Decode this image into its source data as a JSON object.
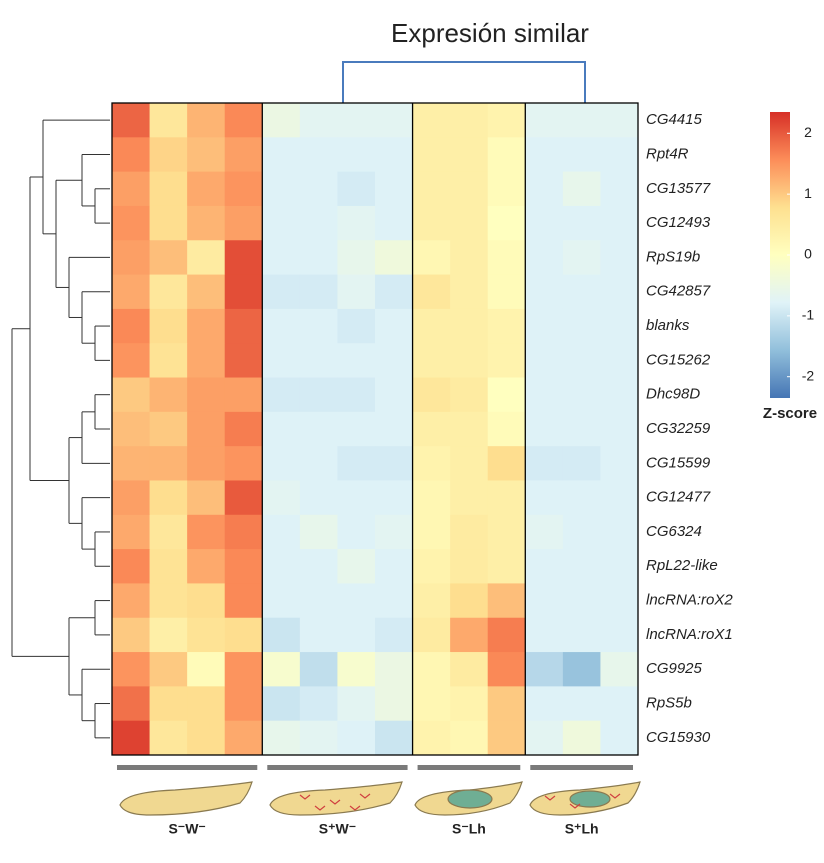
{
  "chart_data": {
    "type": "heatmap",
    "annotation": "Expresión similar",
    "categories": [
      "CG4415",
      "Rpt4R",
      "CG13577",
      "CG12493",
      "RpS19b",
      "CG42857",
      "blanks",
      "CG15262",
      "Dhc98D",
      "CG32259",
      "CG15599",
      "CG12477",
      "CG6324",
      "RpL22-like",
      "lncRNA:roX2",
      "lncRNA:roX1",
      "CG9925",
      "RpS5b",
      "CG15930"
    ],
    "series": [
      {
        "name": "S⁻W⁻",
        "values": [
          [
            1.9,
            0.6,
            1.2,
            1.6
          ],
          [
            1.6,
            0.9,
            1.1,
            1.4
          ],
          [
            1.4,
            0.8,
            1.3,
            1.5
          ],
          [
            1.5,
            0.8,
            1.2,
            1.4
          ],
          [
            1.4,
            1.1,
            0.5,
            2.1
          ],
          [
            1.3,
            0.6,
            1.1,
            2.1
          ],
          [
            1.6,
            0.8,
            1.3,
            1.9
          ],
          [
            1.5,
            0.7,
            1.3,
            1.9
          ],
          [
            1.0,
            1.2,
            1.4,
            1.4
          ],
          [
            1.1,
            1.0,
            1.4,
            1.7
          ],
          [
            1.2,
            1.2,
            1.4,
            1.5
          ],
          [
            1.4,
            0.8,
            1.1,
            2.0
          ],
          [
            1.3,
            0.6,
            1.5,
            1.7
          ],
          [
            1.6,
            0.7,
            1.3,
            1.6
          ],
          [
            1.3,
            0.7,
            0.8,
            1.6
          ],
          [
            1.0,
            0.4,
            0.7,
            0.8
          ],
          [
            1.5,
            1.0,
            0.1,
            1.5
          ],
          [
            1.8,
            0.8,
            0.8,
            1.5
          ],
          [
            2.2,
            0.6,
            0.8,
            1.3
          ]
        ]
      },
      {
        "name": "S⁺W⁻",
        "values": [
          [
            -0.5,
            -0.7,
            -0.7,
            -0.7
          ],
          [
            -0.8,
            -0.8,
            -0.8,
            -0.8
          ],
          [
            -0.8,
            -0.8,
            -0.9,
            -0.8
          ],
          [
            -0.8,
            -0.8,
            -0.7,
            -0.8
          ],
          [
            -0.8,
            -0.8,
            -0.6,
            -0.4
          ],
          [
            -0.9,
            -0.9,
            -0.7,
            -0.9
          ],
          [
            -0.8,
            -0.8,
            -0.9,
            -0.8
          ],
          [
            -0.8,
            -0.8,
            -0.8,
            -0.8
          ],
          [
            -0.9,
            -0.9,
            -0.9,
            -0.8
          ],
          [
            -0.8,
            -0.8,
            -0.8,
            -0.8
          ],
          [
            -0.8,
            -0.8,
            -0.9,
            -0.9
          ],
          [
            -0.7,
            -0.8,
            -0.8,
            -0.8
          ],
          [
            -0.8,
            -0.6,
            -0.8,
            -0.7
          ],
          [
            -0.8,
            -0.8,
            -0.6,
            -0.8
          ],
          [
            -0.8,
            -0.8,
            -0.8,
            -0.8
          ],
          [
            -1.0,
            -0.8,
            -0.8,
            -0.9
          ],
          [
            -0.2,
            -1.1,
            -0.2,
            -0.5
          ],
          [
            -1.0,
            -0.9,
            -0.7,
            -0.5
          ],
          [
            -0.6,
            -0.7,
            -0.8,
            -1.0
          ]
        ]
      },
      {
        "name": "S⁻Lh",
        "values": [
          [
            0.4,
            0.4,
            0.3
          ],
          [
            0.4,
            0.4,
            0.1
          ],
          [
            0.4,
            0.4,
            0.1
          ],
          [
            0.4,
            0.4,
            0.0
          ],
          [
            0.2,
            0.4,
            0.1
          ],
          [
            0.6,
            0.4,
            0.1
          ],
          [
            0.4,
            0.4,
            0.3
          ],
          [
            0.4,
            0.4,
            0.3
          ],
          [
            0.6,
            0.5,
            0.0
          ],
          [
            0.4,
            0.4,
            0.1
          ],
          [
            0.3,
            0.4,
            0.8
          ],
          [
            0.2,
            0.4,
            0.4
          ],
          [
            0.2,
            0.5,
            0.4
          ],
          [
            0.3,
            0.5,
            0.4
          ],
          [
            0.4,
            0.8,
            1.1
          ],
          [
            0.5,
            1.3,
            1.7
          ],
          [
            0.2,
            0.5,
            1.6
          ],
          [
            0.2,
            0.3,
            1.0
          ],
          [
            0.3,
            0.2,
            1.0
          ]
        ]
      },
      {
        "name": "S⁺Lh",
        "values": [
          [
            -0.7,
            -0.7,
            -0.7
          ],
          [
            -0.8,
            -0.8,
            -0.8
          ],
          [
            -0.8,
            -0.6,
            -0.8
          ],
          [
            -0.8,
            -0.8,
            -0.8
          ],
          [
            -0.8,
            -0.7,
            -0.8
          ],
          [
            -0.8,
            -0.8,
            -0.8
          ],
          [
            -0.8,
            -0.8,
            -0.8
          ],
          [
            -0.8,
            -0.8,
            -0.8
          ],
          [
            -0.8,
            -0.8,
            -0.8
          ],
          [
            -0.8,
            -0.8,
            -0.8
          ],
          [
            -0.9,
            -0.9,
            -0.8
          ],
          [
            -0.8,
            -0.8,
            -0.8
          ],
          [
            -0.7,
            -0.8,
            -0.8
          ],
          [
            -0.8,
            -0.8,
            -0.8
          ],
          [
            -0.8,
            -0.8,
            -0.8
          ],
          [
            -0.8,
            -0.8,
            -0.8
          ],
          [
            -1.2,
            -1.5,
            -0.6
          ],
          [
            -0.8,
            -0.8,
            -0.8
          ],
          [
            -0.7,
            -0.4,
            -0.8
          ]
        ]
      }
    ],
    "colorscale": [
      "#4575b4",
      "#91bfdb",
      "#e0f3f8",
      "#ffffbf",
      "#fee090",
      "#fc8d59",
      "#d73027"
    ],
    "zlim": [
      -2.35,
      2.35
    ],
    "zticks": [
      2,
      1,
      0,
      -1,
      -2
    ],
    "colorbar_label": "Z-score"
  }
}
